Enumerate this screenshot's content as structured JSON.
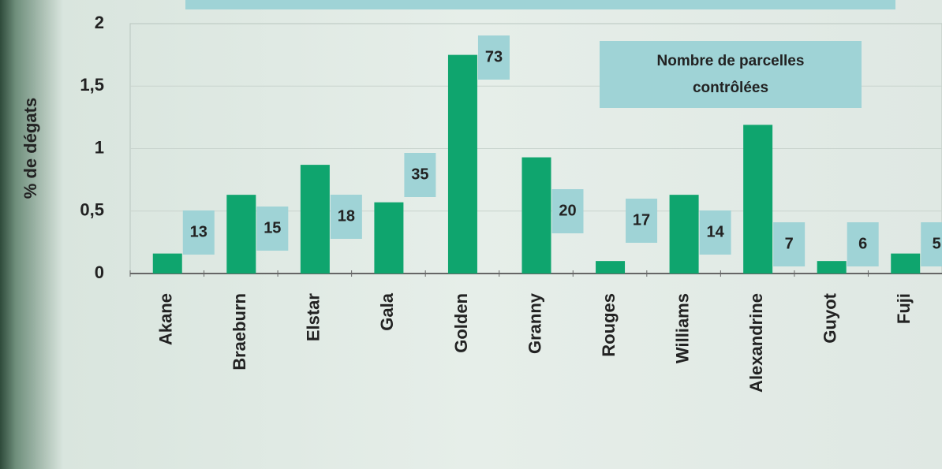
{
  "chart_data": {
    "type": "bar",
    "ylabel": "% de dégats",
    "categories": [
      "Akane",
      "Braeburn",
      "Elstar",
      "Gala",
      "Golden",
      "Granny",
      "Rouges",
      "Williams",
      "Alexandrine",
      "Guyot",
      "Fuji"
    ],
    "values": [
      0.16,
      0.63,
      0.87,
      0.57,
      1.75,
      0.93,
      0.1,
      0.63,
      1.19,
      0.1,
      0.16
    ],
    "value_labels_title": "Nombre de parcelles contrôlées",
    "plot_counts": [
      13,
      15,
      18,
      35,
      73,
      20,
      17,
      14,
      7,
      6,
      5
    ],
    "color": "#0fa56e",
    "ylim": [
      0,
      2
    ],
    "yticks": [
      0,
      {
        "value": 0.5,
        "label": "0,5"
      },
      1,
      {
        "value": 1.5,
        "label": "1,5"
      },
      2
    ],
    "grid": true
  }
}
